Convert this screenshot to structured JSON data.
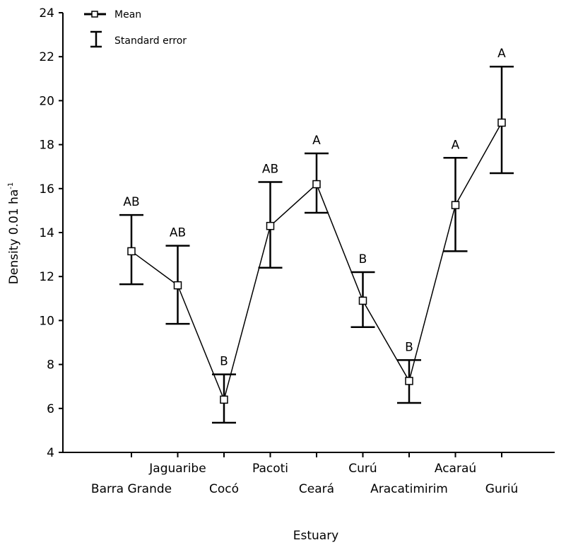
{
  "chart_data": {
    "type": "line",
    "xlabel": "Estuary",
    "ylabel": "Density 0.01 ha",
    "ylabel_superscript": "-1",
    "ylim": [
      4,
      24
    ],
    "yticks": [
      4,
      6,
      8,
      10,
      12,
      14,
      16,
      18,
      20,
      22,
      24
    ],
    "grid": false,
    "legend": {
      "position": "top-left",
      "entries": [
        "Mean",
        "Standard error"
      ]
    },
    "categories": [
      "Barra Grande",
      "Jaguaribe",
      "Cocó",
      "Pacoti",
      "Ceará",
      "Curú",
      "Aracatimirim",
      "Acaraú",
      "Guriú"
    ],
    "series": [
      {
        "name": "Mean",
        "values": [
          13.15,
          11.6,
          6.4,
          14.3,
          16.2,
          10.9,
          7.25,
          15.25,
          19.0
        ],
        "se_upper": [
          14.8,
          13.4,
          7.55,
          16.3,
          17.6,
          12.2,
          8.2,
          17.4,
          21.55
        ],
        "se_lower": [
          11.65,
          9.85,
          5.35,
          12.4,
          14.9,
          9.7,
          6.25,
          13.15,
          16.7
        ],
        "significance": [
          "AB",
          "AB",
          "B",
          "AB",
          "A",
          "B",
          "B",
          "A",
          "A"
        ]
      }
    ]
  }
}
